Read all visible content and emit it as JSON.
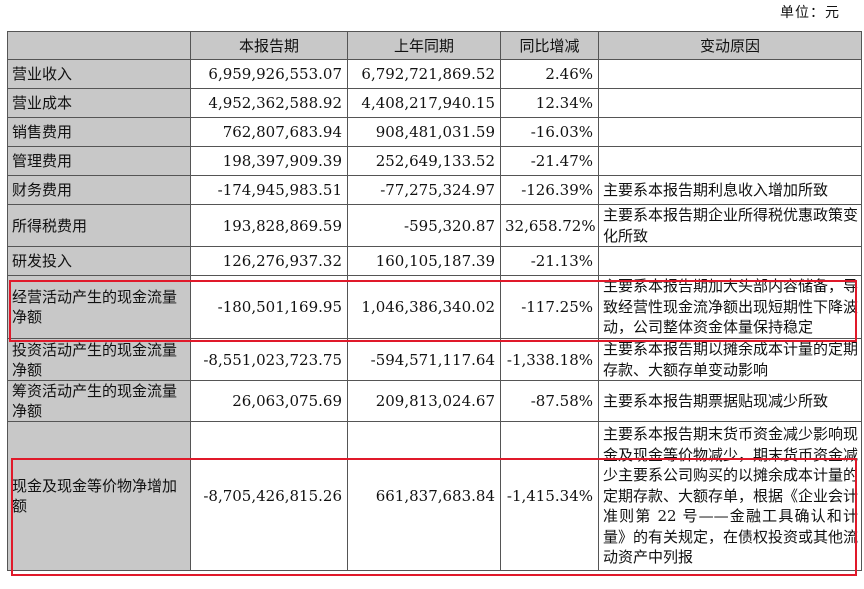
{
  "unit_label": "单位：元",
  "headers": [
    "",
    "本报告期",
    "上年同期",
    "同比增减",
    "变动原因"
  ],
  "rows": [
    {
      "item": "营业收入",
      "current": "6,959,926,553.07",
      "prior": "6,792,721,869.52",
      "change": "2.46%",
      "reason": ""
    },
    {
      "item": "营业成本",
      "current": "4,952,362,588.92",
      "prior": "4,408,217,940.15",
      "change": "12.34%",
      "reason": ""
    },
    {
      "item": "销售费用",
      "current": "762,807,683.94",
      "prior": "908,481,031.59",
      "change": "-16.03%",
      "reason": ""
    },
    {
      "item": "管理费用",
      "current": "198,397,909.39",
      "prior": "252,649,133.52",
      "change": "-21.47%",
      "reason": ""
    },
    {
      "item": "财务费用",
      "current": "-174,945,983.51",
      "prior": "-77,275,324.97",
      "change": "-126.39%",
      "reason": "主要系本报告期利息收入增加所致"
    },
    {
      "item": "所得税费用",
      "current": "193,828,869.59",
      "prior": "-595,320.87",
      "change": "32,658.72%",
      "reason": "主要系本报告期企业所得税优惠政策变化所致"
    },
    {
      "item": "研发投入",
      "current": "126,276,937.32",
      "prior": "160,105,187.39",
      "change": "-21.13%",
      "reason": ""
    },
    {
      "item": "经营活动产生的现金流量净额",
      "current": "-180,501,169.95",
      "prior": "1,046,386,340.02",
      "change": "-117.25%",
      "reason": "主要系本报告期加大头部内容储备，导致经营性现金流净额出现短期性下降波动，公司整体资金体量保持稳定"
    },
    {
      "item": "投资活动产生的现金流量净额",
      "current": "-8,551,023,723.75",
      "prior": "-594,571,117.64",
      "change": "-1,338.18%",
      "reason": "主要系本报告期以摊余成本计量的定期存款、大额存单变动影响"
    },
    {
      "item": "筹资活动产生的现金流量净额",
      "current": "26,063,075.69",
      "prior": "209,813,024.67",
      "change": "-87.58%",
      "reason": "主要系本报告期票据贴现减少所致"
    },
    {
      "item": "现金及现金等价物净增加额",
      "current": "-8,705,426,815.26",
      "prior": "661,837,683.84",
      "change": "-1,415.34%",
      "reason": "主要系本报告期末货币资金减少影响现金及现金等价物减少，期末货币资金减少主要系公司购买的以摊余成本计量的定期存款、大额存单，根据《企业会计准则第 22 号——金融工具确认和计量》的有关规定，在债权投资或其他流动资产中列报"
    }
  ],
  "highlight_color": "#e0192a",
  "header_bg": "#c8c8c8"
}
